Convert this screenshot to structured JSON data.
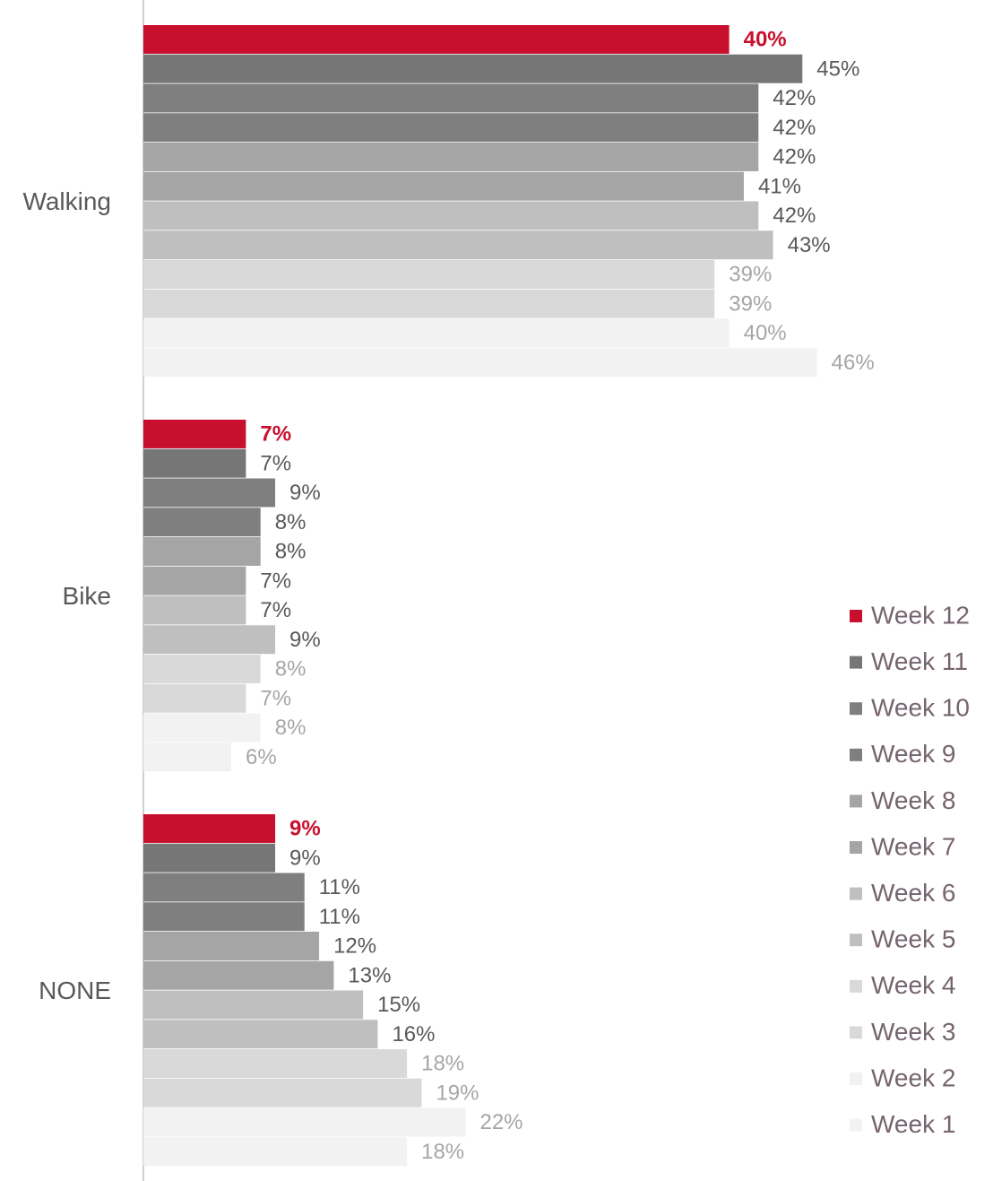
{
  "chart_data": {
    "type": "bar",
    "orientation": "horizontal",
    "categories": [
      "Walking",
      "Bike",
      "NONE"
    ],
    "xlim": [
      0,
      50
    ],
    "series": [
      {
        "name": "Week 12",
        "color": "#c8102e",
        "label_color": "#c8102e",
        "label_bold": true,
        "values": [
          40,
          7,
          9
        ],
        "value_labels": [
          "40%",
          "7%",
          "9%"
        ]
      },
      {
        "name": "Week 11",
        "color": "#767676",
        "label_color": "#595959",
        "values": [
          45,
          7,
          9
        ],
        "value_labels": [
          "45%",
          "7%",
          "9%"
        ]
      },
      {
        "name": "Week 10",
        "color": "#7f7f7f",
        "label_color": "#595959",
        "values": [
          42,
          9,
          11
        ],
        "value_labels": [
          "42%",
          "9%",
          "11%"
        ]
      },
      {
        "name": "Week 9",
        "color": "#7f7f7f",
        "label_color": "#595959",
        "values": [
          42,
          8,
          11
        ],
        "value_labels": [
          "42%",
          "8%",
          "11%"
        ]
      },
      {
        "name": "Week 8",
        "color": "#a5a5a5",
        "label_color": "#595959",
        "values": [
          42,
          8,
          12
        ],
        "value_labels": [
          "42%",
          "8%",
          "12%"
        ]
      },
      {
        "name": "Week 7",
        "color": "#a5a5a5",
        "label_color": "#595959",
        "values": [
          41,
          7,
          13
        ],
        "value_labels": [
          "41%",
          "7%",
          "13%"
        ]
      },
      {
        "name": "Week 6",
        "color": "#bfbfbf",
        "label_color": "#595959",
        "values": [
          42,
          7,
          15
        ],
        "value_labels": [
          "42%",
          "7%",
          "15%"
        ]
      },
      {
        "name": "Week 5",
        "color": "#bfbfbf",
        "label_color": "#595959",
        "values": [
          43,
          9,
          16
        ],
        "value_labels": [
          "43%",
          "9%",
          "16%"
        ]
      },
      {
        "name": "Week 4",
        "color": "#d9d9d9",
        "label_color": "#a6a6a6",
        "values": [
          39,
          8,
          18
        ],
        "value_labels": [
          "39%",
          "8%",
          "18%"
        ]
      },
      {
        "name": "Week 3",
        "color": "#d9d9d9",
        "label_color": "#a6a6a6",
        "values": [
          39,
          7,
          19
        ],
        "value_labels": [
          "39%",
          "7%",
          "19%"
        ]
      },
      {
        "name": "Week 2",
        "color": "#f2f2f2",
        "label_color": "#a6a6a6",
        "values": [
          40,
          8,
          22
        ],
        "value_labels": [
          "40%",
          "8%",
          "22%"
        ]
      },
      {
        "name": "Week 1",
        "color": "#f2f2f2",
        "label_color": "#a6a6a6",
        "values": [
          46,
          6,
          18
        ],
        "value_labels": [
          "46%",
          "6%",
          "18%"
        ]
      }
    ]
  }
}
